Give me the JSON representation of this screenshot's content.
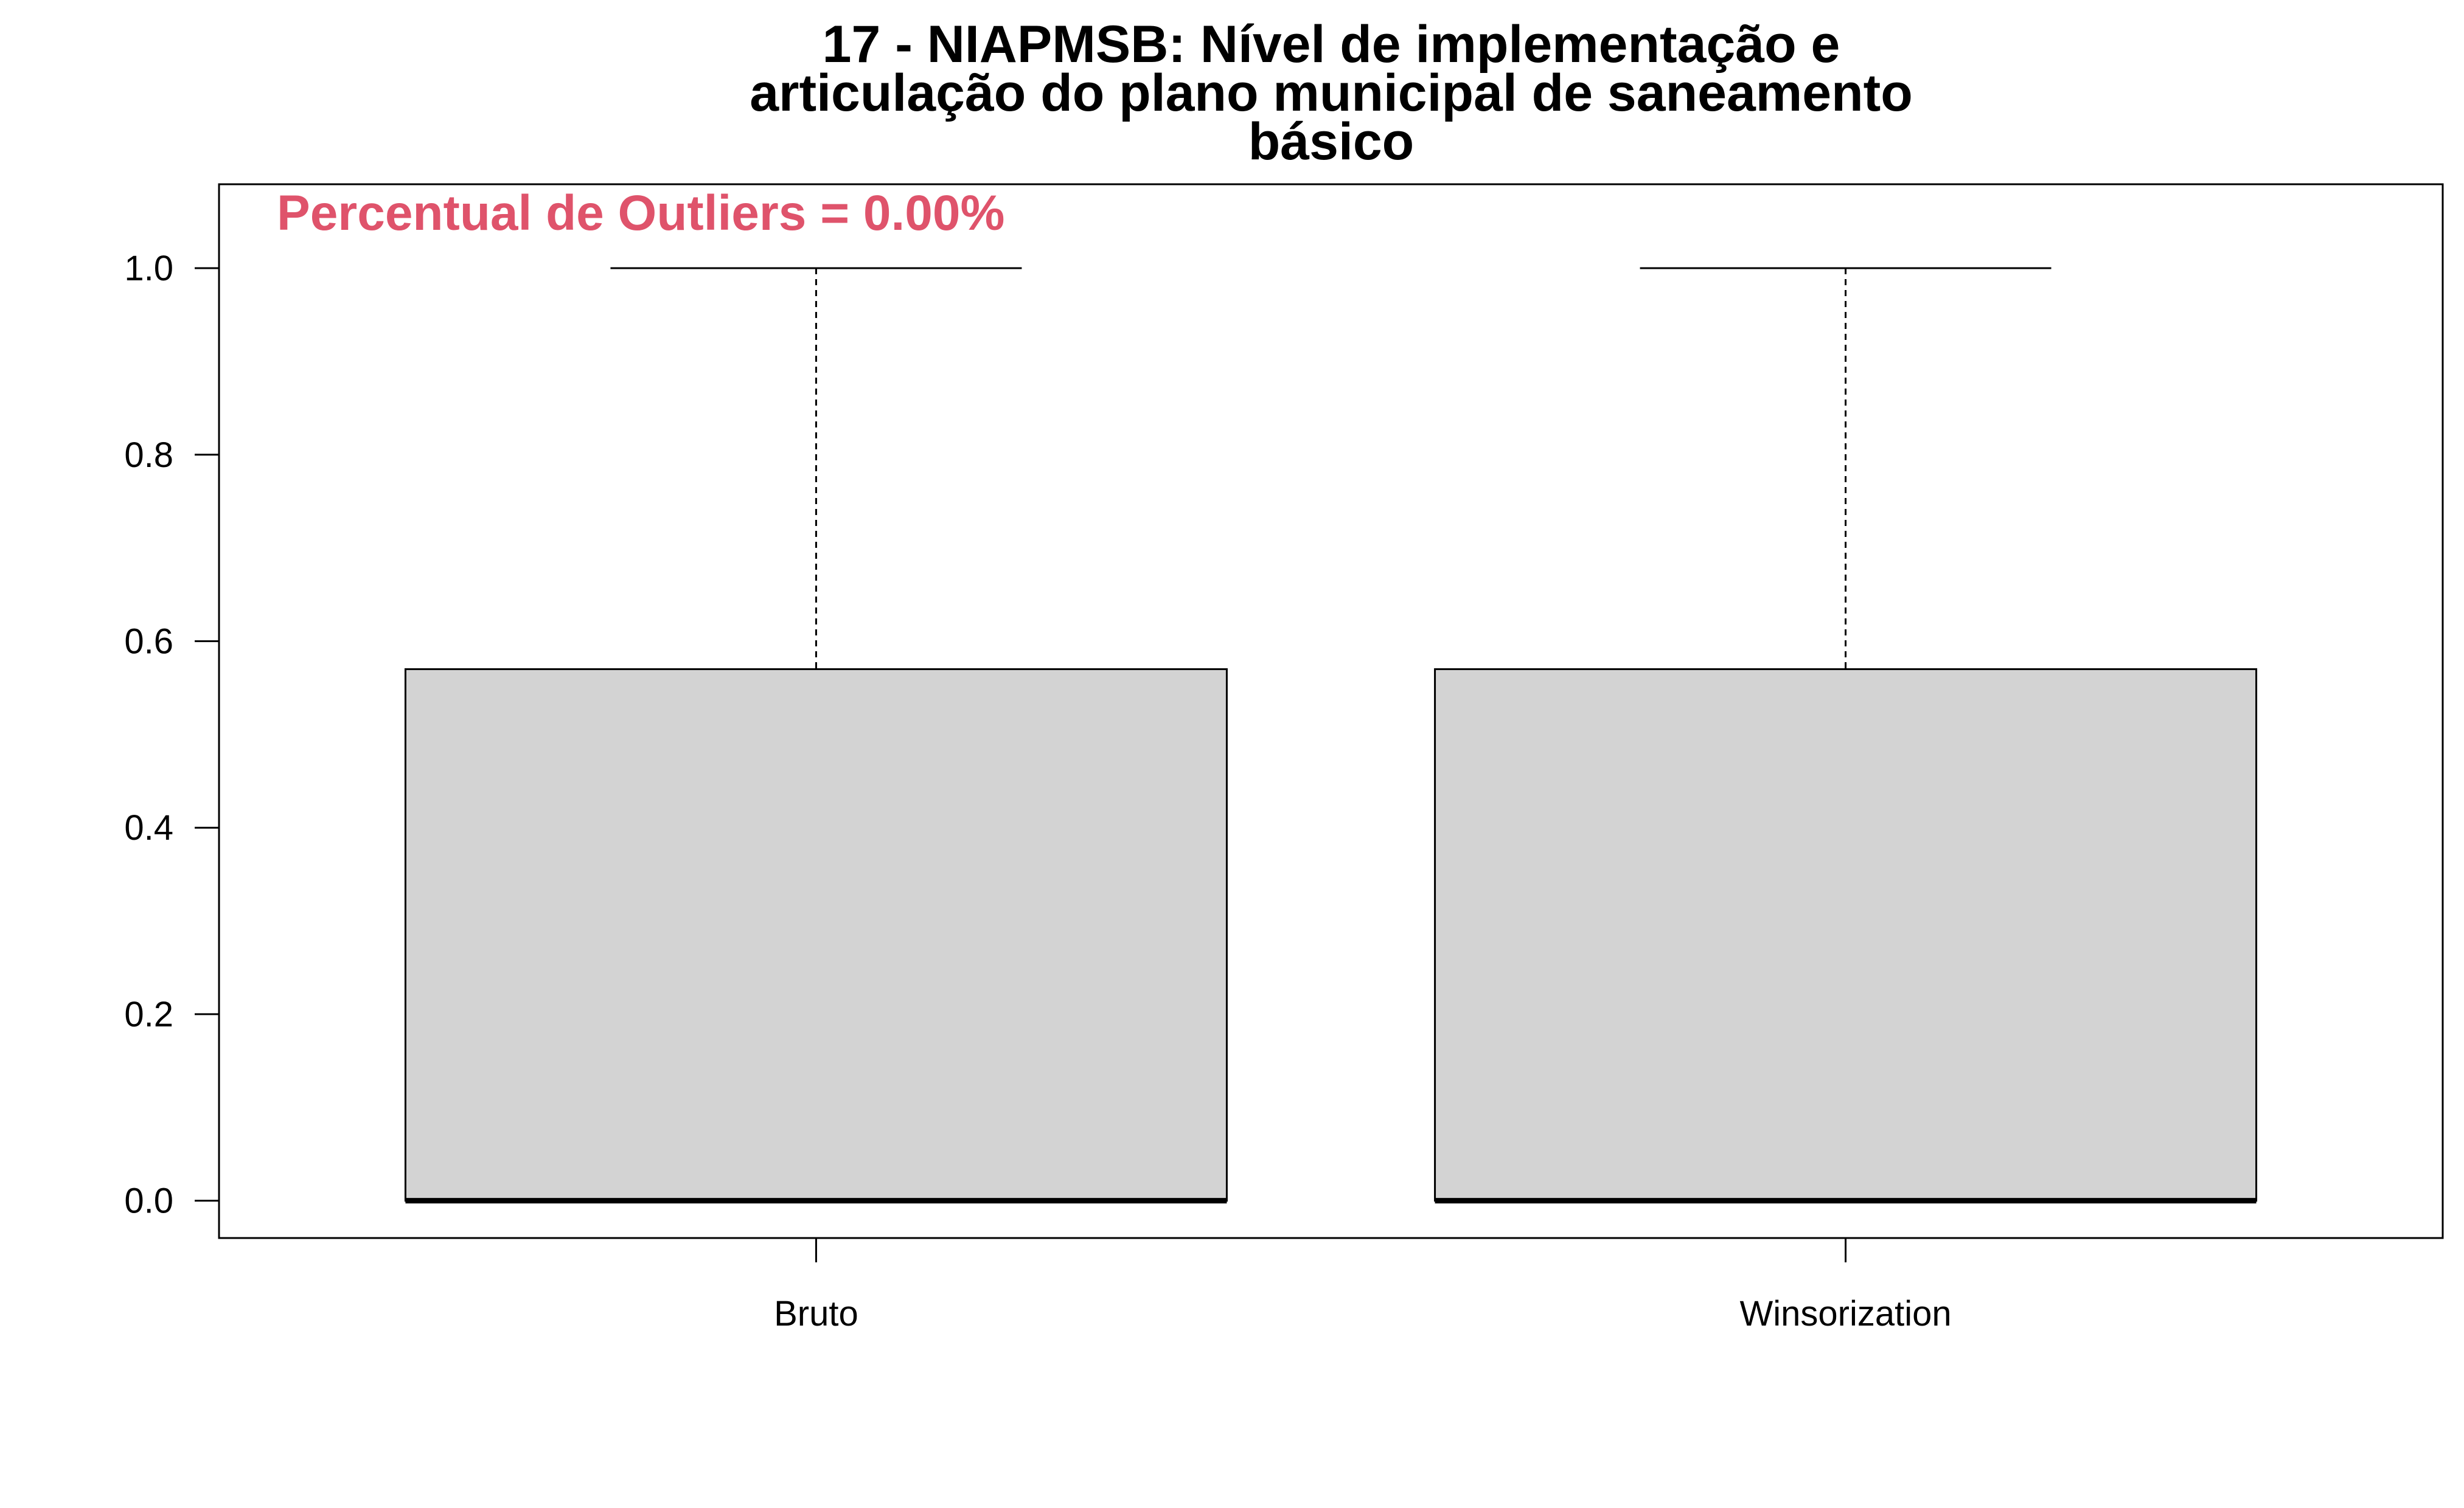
{
  "chart_data": {
    "type": "boxplot",
    "title_lines": [
      "17 - NIAPMSB: Nível de implementação e",
      "articulação do plano municipal de saneamento",
      "básico"
    ],
    "xlabel": "",
    "ylabel": "",
    "categories": [
      "Bruto",
      "Winsorization"
    ],
    "boxes": [
      {
        "category": "Bruto",
        "min": 0.0,
        "q1": 0.0,
        "median": 0.0,
        "q3": 0.57,
        "max": 1.0
      },
      {
        "category": "Winsorization",
        "min": 0.0,
        "q1": 0.0,
        "median": 0.0,
        "q3": 0.57,
        "max": 1.0
      }
    ],
    "ylim": [
      -0.04,
      1.09
    ],
    "yticks": [
      0.0,
      0.2,
      0.4,
      0.6,
      0.8,
      1.0
    ],
    "ytick_labels": [
      "0.0",
      "0.2",
      "0.4",
      "0.6",
      "0.8",
      "1.0"
    ],
    "annotation": "Percentual de Outliers = 0.00%",
    "colors": {
      "box_fill": "#d3d3d3",
      "annotation": "#df536b",
      "line": "#000000"
    },
    "grid": false
  }
}
